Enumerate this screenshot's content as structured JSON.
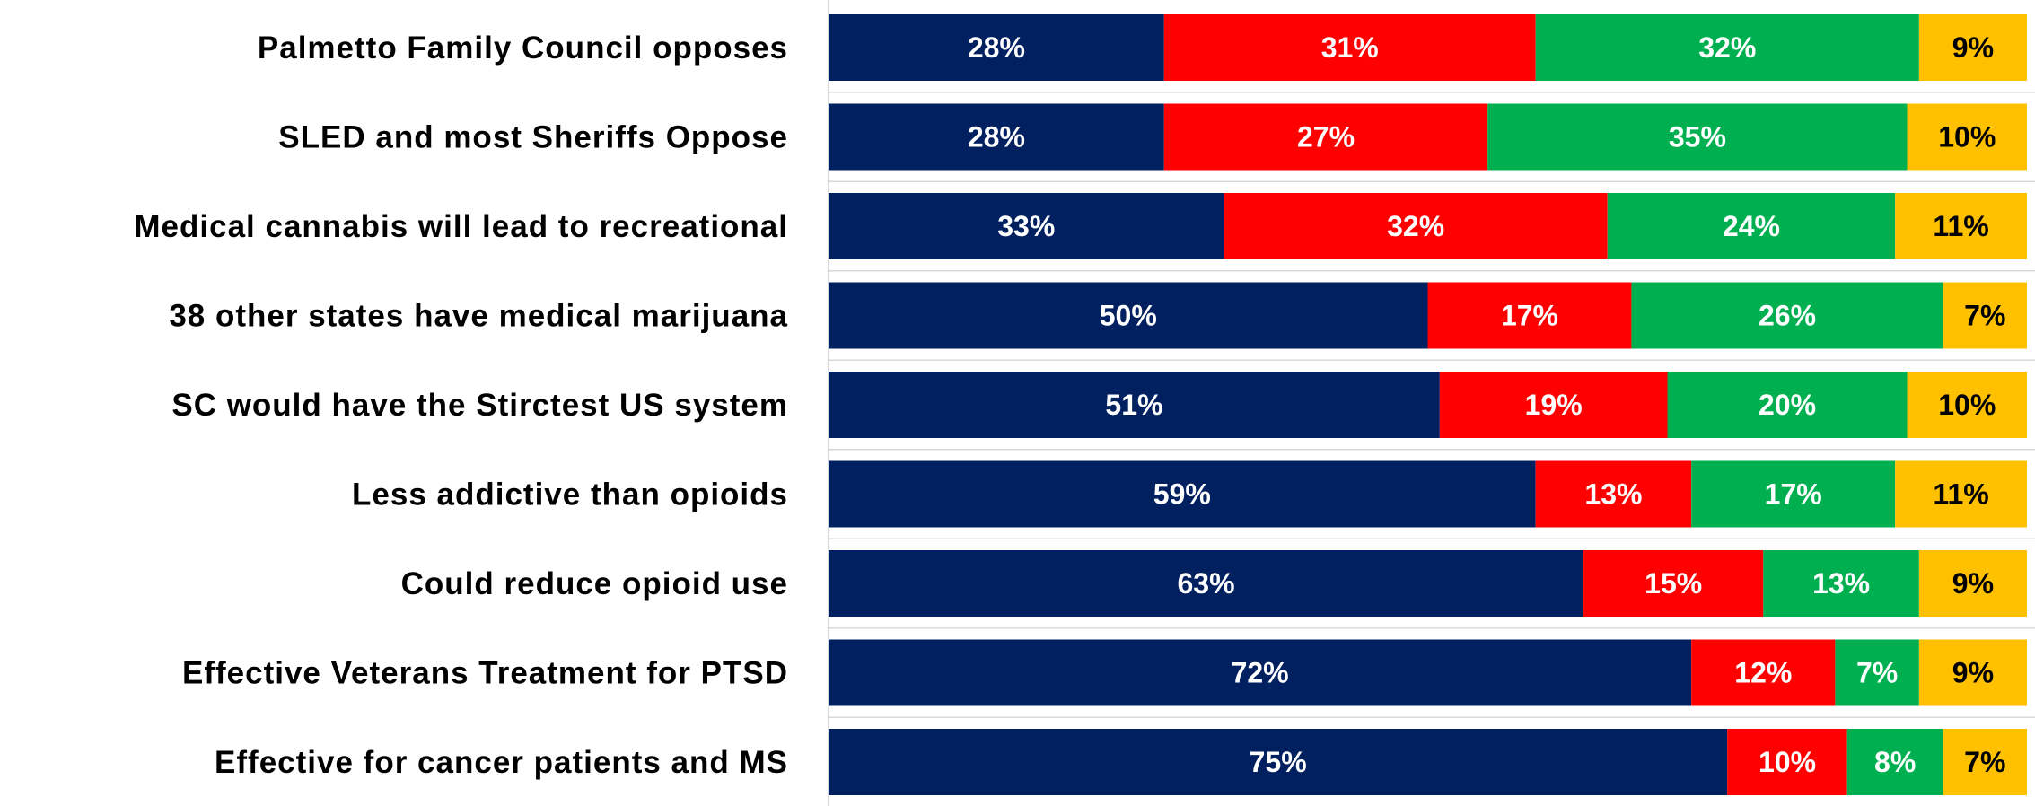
{
  "chart_data": {
    "type": "bar",
    "orientation": "horizontal",
    "stacked": true,
    "title": "",
    "xlabel": "",
    "ylabel": "",
    "xlim": [
      0,
      100
    ],
    "grid": false,
    "legend": "none",
    "categories": [
      "Palmetto Family Council opposes",
      "SLED and most Sheriffs Oppose",
      "Medical cannabis will lead to recreational",
      "38 other states have medical marijuana",
      "SC would have the Stirctest US system",
      "Less addictive than opioids",
      "Could reduce opioid use",
      "Effective Veterans Treatment for PTSD",
      "Effective for cancer patients and MS"
    ],
    "series": [
      {
        "color": "#002060",
        "text_color": "#ffffff",
        "values": [
          28,
          28,
          33,
          50,
          51,
          59,
          63,
          72,
          75
        ]
      },
      {
        "color": "#ff0000",
        "text_color": "#ffffff",
        "values": [
          31,
          27,
          32,
          17,
          19,
          13,
          15,
          12,
          10
        ]
      },
      {
        "color": "#00b050",
        "text_color": "#ffffff",
        "values": [
          32,
          35,
          24,
          26,
          20,
          17,
          13,
          7,
          8
        ]
      },
      {
        "color": "#ffc000",
        "text_color": "#000000",
        "values": [
          9,
          10,
          11,
          7,
          10,
          11,
          9,
          9,
          7
        ]
      }
    ],
    "value_labels": [
      [
        "28%",
        "28%",
        "33%",
        "50%",
        "51%",
        "59%",
        "63%",
        "72%",
        "75%"
      ],
      [
        "31%",
        "27%",
        "32%",
        "17%",
        "19%",
        "13%",
        "15%",
        "12%",
        "10%"
      ],
      [
        "32%",
        "35%",
        "24%",
        "26%",
        "20%",
        "17%",
        "13%",
        "7%",
        "8%"
      ],
      [
        "9%",
        "10%",
        "11%",
        "7%",
        "10%",
        "11%",
        "9%",
        "9%",
        "7%"
      ]
    ]
  }
}
